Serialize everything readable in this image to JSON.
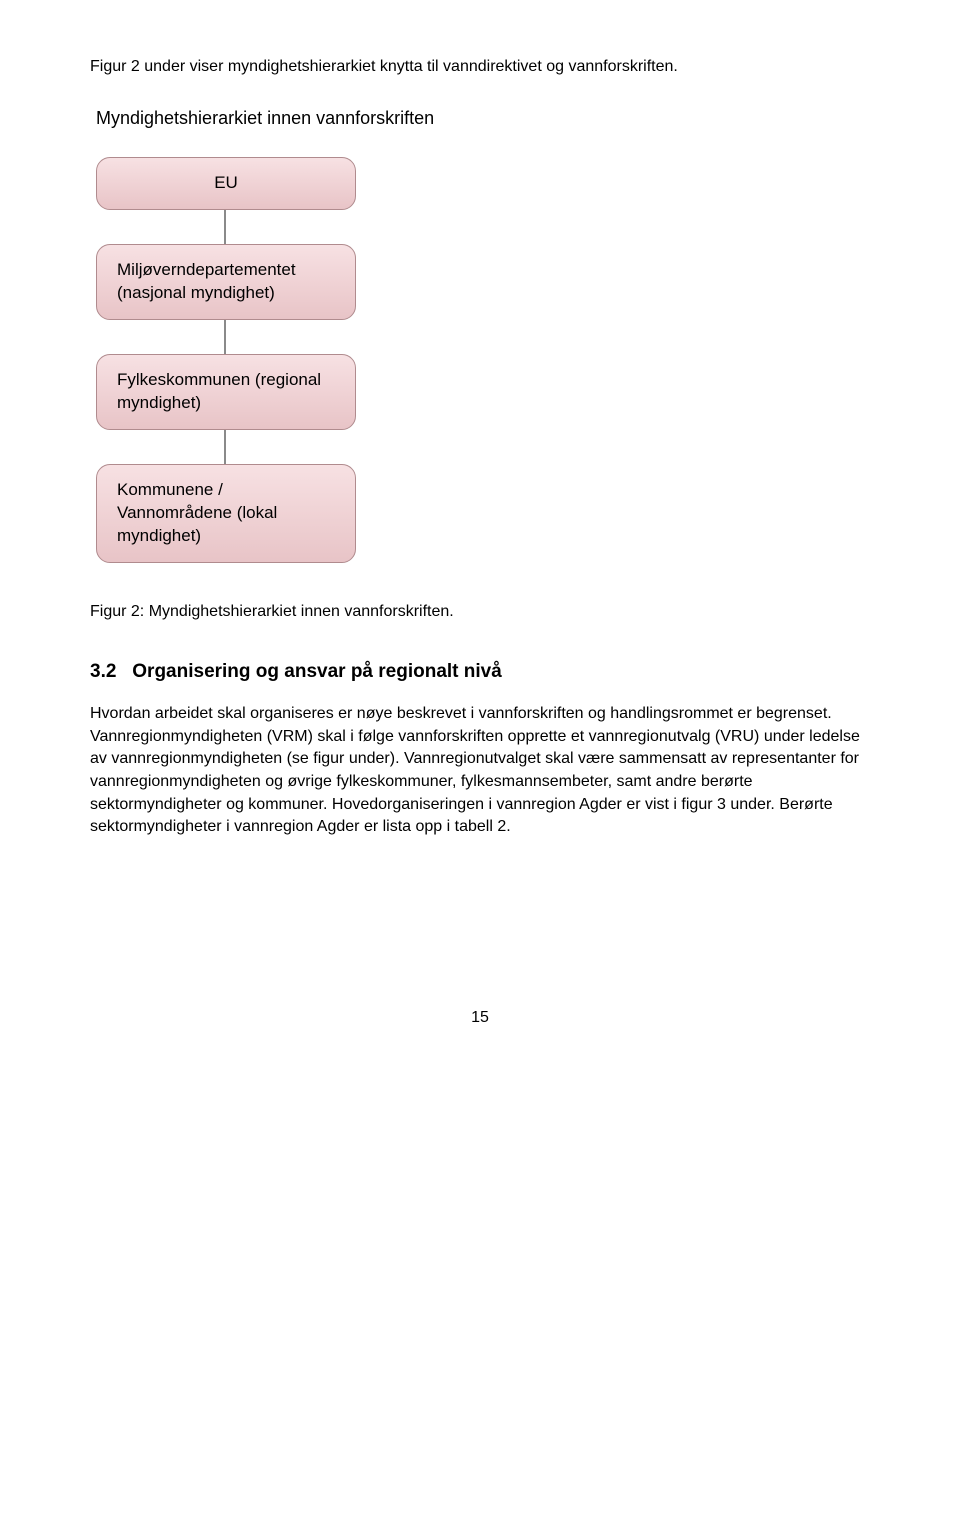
{
  "intro": "Figur 2 under viser myndighetshierarkiet knytta til vanndirektivet og vannforskriften.",
  "diagram": {
    "title": "Myndighetshierarkiet innen vannforskriften",
    "nodes": [
      {
        "label": "EU",
        "align": "center"
      },
      {
        "label": "Miljøverndepartementet (nasjonal myndighet)",
        "align": "left"
      },
      {
        "label": "Fylkeskommunen (regional myndighet)",
        "align": "left"
      },
      {
        "label": "Kommunene / Vannområdene (lokal myndighet)",
        "align": "left"
      }
    ]
  },
  "caption": "Figur 2: Myndighetshierarkiet innen vannforskriften.",
  "section": {
    "number": "3.2",
    "title": "Organisering og ansvar på regionalt nivå"
  },
  "body": "Hvordan arbeidet skal organiseres er nøye beskrevet i vannforskriften og handlingsrommet er begrenset. Vannregionmyndigheten (VRM) skal i følge vannforskriften opprette et vannregionutvalg (VRU) under ledelse av vannregionmyndigheten (se figur under). Vannregionutvalget skal være sammensatt av representanter for vannregionmyndigheten og øvrige fylkeskommuner, fylkesmannsembeter, samt andre berørte sektormyndigheter og kommuner. Hovedorganiseringen i vannregion Agder er vist i figur 3 under. Berørte sektormyndigheter i vannregion Agder er lista opp i tabell 2.",
  "pageNumber": "15"
}
